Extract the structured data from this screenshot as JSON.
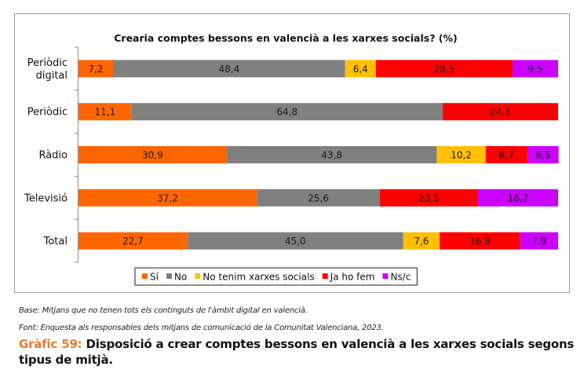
{
  "chart_data": {
    "type": "bar",
    "orientation": "horizontal",
    "stacked": true,
    "title": "Crearia comptes bessons en valencià a les xarxes socials? (%)",
    "xlabel": "",
    "ylabel": "",
    "xlim": [
      0,
      100
    ],
    "grid": false,
    "legend_position": "bottom",
    "categories": [
      "Periòdic digital",
      "Periòdic",
      "Ràdio",
      "Televisió",
      "Total"
    ],
    "category_lines": [
      [
        "Periòdic",
        "digital"
      ],
      [
        "Periòdic"
      ],
      [
        "Ràdio"
      ],
      [
        "Televisió"
      ],
      [
        "Total"
      ]
    ],
    "series": [
      {
        "name": "Sí",
        "color": "#ff6600",
        "values": [
          7.2,
          11.1,
          30.9,
          37.2,
          22.7
        ],
        "labels": [
          "7,2",
          "11,1",
          "30,9",
          "37,2",
          "22,7"
        ]
      },
      {
        "name": "No",
        "color": "#808080",
        "values": [
          48.4,
          64.8,
          43.8,
          25.6,
          45.0
        ],
        "labels": [
          "48,4",
          "64,8",
          "43,8",
          "25,6",
          "45,0"
        ]
      },
      {
        "name": "No tenim xarxes socials",
        "color": "#ffc000",
        "values": [
          6.4,
          0,
          10.2,
          0,
          7.6
        ],
        "labels": [
          "6,4",
          "",
          "10,2",
          "",
          "7,6"
        ]
      },
      {
        "name": "Ja ho fem",
        "color": "#ff0000",
        "values": [
          28.5,
          24.1,
          8.7,
          20.5,
          16.8
        ],
        "labels": [
          "28,5",
          "24,1",
          "8,7",
          "20,5",
          "16,8"
        ]
      },
      {
        "name": "Ns/c",
        "color": "#cc00ff",
        "values": [
          9.5,
          0,
          6.5,
          16.7,
          7.9
        ],
        "labels": [
          "9,5",
          "",
          "6,5",
          "16,7",
          "7,9"
        ]
      }
    ]
  },
  "notes": {
    "base": "Base: Mitjans que no tenen tots els continguts de l'àmbit digital en valencià.",
    "font": "Font: Enquesta als responsables dels mitjans de comunicació de la Comunitat Valenciana, 2023."
  },
  "caption": {
    "label": "Gràfic 59:",
    "text": " Disposició a crear comptes bessons en valencià a les xarxes socials segons tipus de mitjà."
  },
  "colors": {
    "label_text": "#1a1a1a",
    "caption_accent": "#e8792f"
  }
}
